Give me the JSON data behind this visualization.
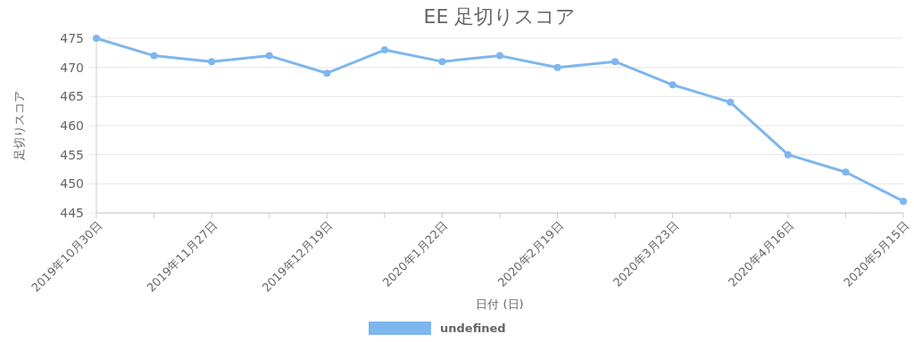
{
  "chart_data": {
    "type": "line",
    "title": "EE 足切りスコア",
    "xlabel": "日付 (日)",
    "ylabel": "足切りスコア",
    "categories": [
      "2019年10月30日",
      null,
      "2019年11月27日",
      null,
      "2019年12月19日",
      null,
      "2020年1月22日",
      null,
      "2020年2月19日",
      null,
      "2020年3月23日",
      null,
      "2020年4月16日",
      null,
      "2020年5月15日"
    ],
    "series": [
      {
        "name": "undefined",
        "color": "#7eb6ee",
        "values": [
          475,
          472,
          471,
          472,
          469,
          473,
          471,
          472,
          470,
          471,
          467,
          464,
          455,
          452,
          447
        ]
      }
    ],
    "ylim": [
      445,
      475
    ],
    "yticks": [
      445,
      450,
      455,
      460,
      465,
      470,
      475
    ],
    "grid": "y",
    "legend": "bottom",
    "marker": "circle",
    "line_style": "solid"
  }
}
